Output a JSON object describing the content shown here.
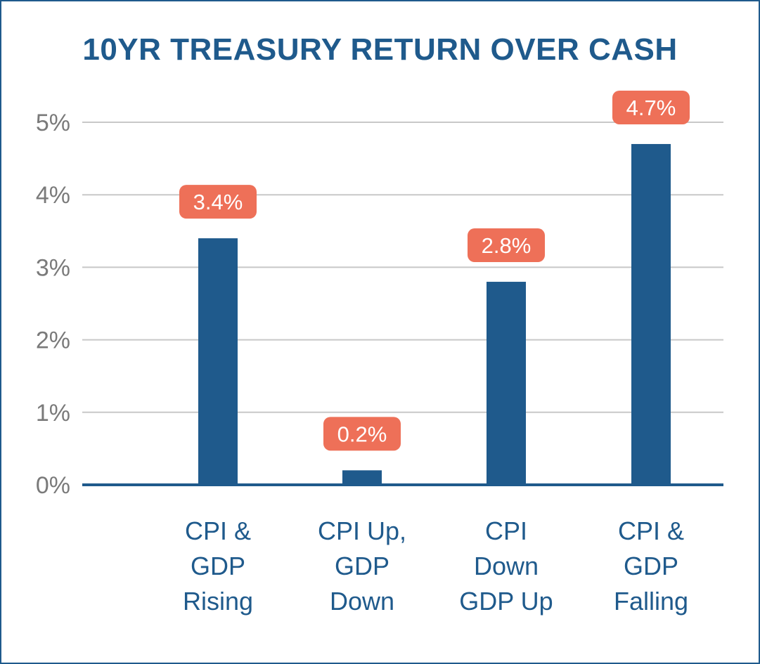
{
  "chart_data": {
    "type": "bar",
    "title": "10YR TREASURY RETURN OVER CASH",
    "xlabel": "",
    "ylabel": "",
    "ylim": [
      0,
      5
    ],
    "yticks": [
      "0%",
      "1%",
      "2%",
      "3%",
      "4%",
      "5%"
    ],
    "categories": [
      [
        "CPI &",
        "GDP",
        "Rising"
      ],
      [
        "CPI Up,",
        "GDP",
        "Down"
      ],
      [
        "CPI",
        "Down",
        "GDP Up"
      ],
      [
        "CPI  &",
        "GDP",
        "Falling"
      ]
    ],
    "values": [
      3.4,
      0.2,
      2.8,
      4.7
    ],
    "data_labels": [
      "3.4%",
      "0.2%",
      "2.8%",
      "4.7%"
    ],
    "grid": true,
    "colors": {
      "bar": "#1f5a8c",
      "label_bg": "#ee7058",
      "grid": "#c8c8c8",
      "axis": "#1f5a8c",
      "tick_text": "#7a7a7a",
      "title": "#1f5a8c"
    }
  }
}
